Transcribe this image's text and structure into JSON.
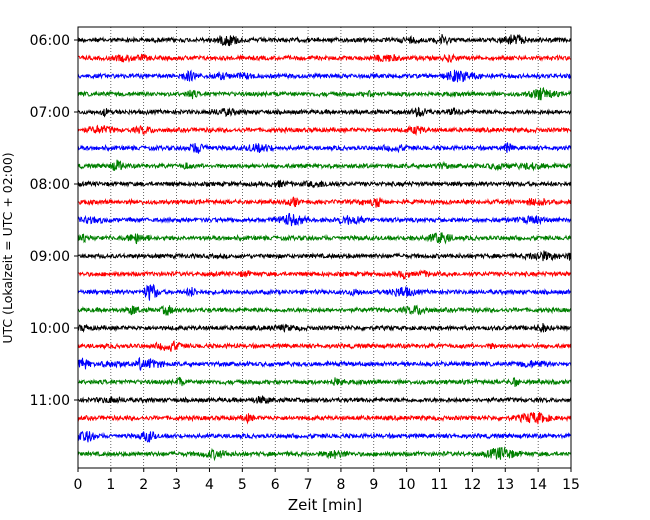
{
  "chart_data": {
    "type": "line",
    "xlabel": "Zeit  [min]",
    "ylabel": "UTC (Lokalzeit = UTC + 02:00)",
    "xlim": [
      0,
      15
    ],
    "x_ticks": [
      "0",
      "1",
      "2",
      "3",
      "4",
      "5",
      "6",
      "7",
      "8",
      "9",
      "10",
      "11",
      "12",
      "13",
      "14",
      "15"
    ],
    "y_ticks": [
      "06:00",
      "07:00",
      "08:00",
      "09:00",
      "10:00",
      "11:00"
    ],
    "grid": "vertical dotted at each minute",
    "trace_colors": [
      "#000000",
      "#ff0000",
      "#0000ff",
      "#008000"
    ],
    "series": [
      {
        "start": "06:00",
        "color": "#000000"
      },
      {
        "start": "06:15",
        "color": "#ff0000"
      },
      {
        "start": "06:30",
        "color": "#0000ff"
      },
      {
        "start": "06:45",
        "color": "#008000"
      },
      {
        "start": "07:00",
        "color": "#000000"
      },
      {
        "start": "07:15",
        "color": "#ff0000"
      },
      {
        "start": "07:30",
        "color": "#0000ff"
      },
      {
        "start": "07:45",
        "color": "#008000"
      },
      {
        "start": "08:00",
        "color": "#000000"
      },
      {
        "start": "08:15",
        "color": "#ff0000"
      },
      {
        "start": "08:30",
        "color": "#0000ff"
      },
      {
        "start": "08:45",
        "color": "#008000"
      },
      {
        "start": "09:00",
        "color": "#000000"
      },
      {
        "start": "09:15",
        "color": "#ff0000"
      },
      {
        "start": "09:30",
        "color": "#0000ff"
      },
      {
        "start": "09:45",
        "color": "#008000"
      },
      {
        "start": "10:00",
        "color": "#000000"
      },
      {
        "start": "10:15",
        "color": "#ff0000"
      },
      {
        "start": "10:30",
        "color": "#0000ff"
      },
      {
        "start": "10:45",
        "color": "#008000"
      },
      {
        "start": "11:00",
        "color": "#000000"
      },
      {
        "start": "11:15",
        "color": "#ff0000"
      },
      {
        "start": "11:30",
        "color": "#0000ff"
      },
      {
        "start": "11:45",
        "color": "#008000"
      }
    ]
  }
}
